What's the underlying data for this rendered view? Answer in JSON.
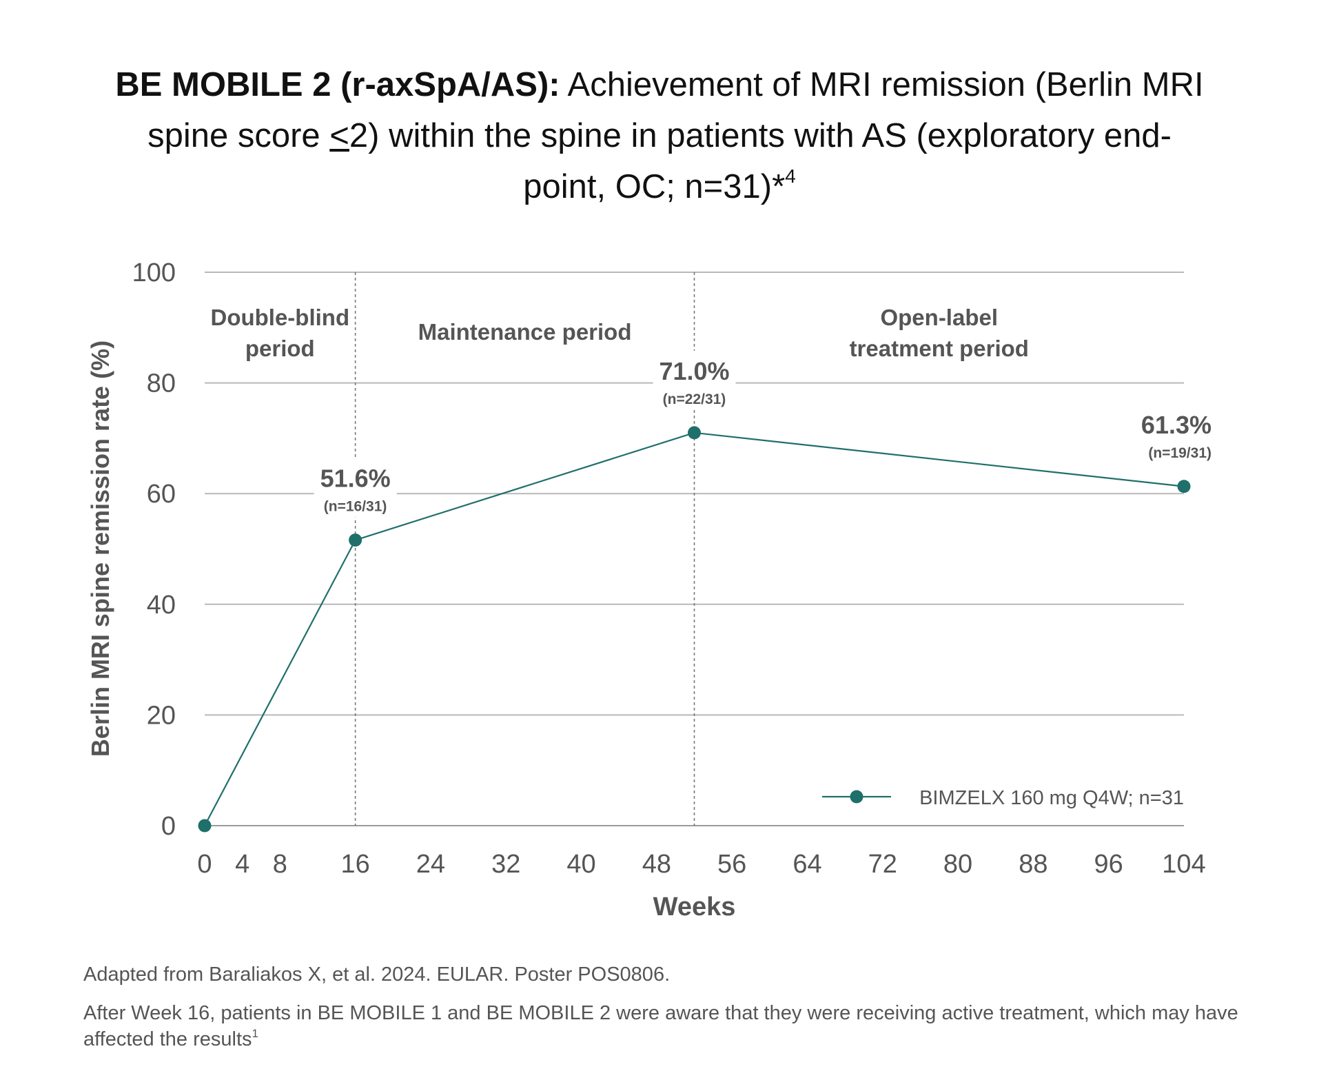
{
  "title": {
    "bold_part": "BE MOBILE 2 (r-axSpA/AS):",
    "line1_rest": " Achievement of MRI remission (Berlin MRI",
    "line2": "spine score ",
    "line2_le": "<",
    "line2_rest": "2) within the spine in patients with AS (exploratory end-",
    "line3": "point, OC; n=31)*",
    "line3_sup": "4"
  },
  "chart_data": {
    "type": "line",
    "xlabel": "Weeks",
    "ylabel": "Berlin MRI spine remission rate (%)",
    "xlim": [
      0,
      104
    ],
    "ylim": [
      0,
      100
    ],
    "x_ticks": [
      0,
      4,
      8,
      16,
      24,
      32,
      40,
      48,
      56,
      64,
      72,
      80,
      88,
      96,
      104
    ],
    "y_ticks": [
      0,
      20,
      40,
      60,
      80,
      100
    ],
    "grid": true,
    "period_dividers": [
      16,
      52
    ],
    "periods": [
      {
        "lines": [
          "Double-blind",
          "period"
        ]
      },
      {
        "lines": [
          "Maintenance period"
        ]
      },
      {
        "lines": [
          "Open-label",
          "treatment period"
        ]
      }
    ],
    "series": [
      {
        "name": "BIMZELX 160 mg Q4W; n=31",
        "color": "#1f6f6b",
        "x": [
          0,
          16,
          52,
          104
        ],
        "y": [
          0,
          51.6,
          71.0,
          61.3
        ],
        "labels": [
          null,
          {
            "value": "51.6%",
            "n": "(n=16/31)"
          },
          {
            "value": "71.0%",
            "n": "(n=22/31)"
          },
          {
            "value": "61.3%",
            "n": "(n=19/31)"
          }
        ]
      }
    ],
    "legend_position": "bottom-right"
  },
  "footer": {
    "source": "Adapted from Baraliakos X, et al. 2024. EULAR. Poster POS0806.",
    "note": "After Week 16, patients in BE MOBILE 1 and BE MOBILE 2 were aware that they were receiving active treatment, which may have affected the results",
    "note_sup": "1"
  }
}
